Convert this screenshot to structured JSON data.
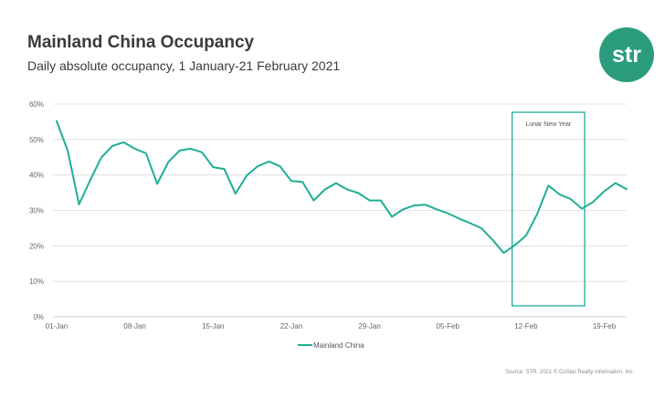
{
  "header": {
    "title": "Mainland China Occupancy",
    "subtitle": "Daily absolute occupancy, 1 January-21 February 2021"
  },
  "logo": {
    "text": "str",
    "color": "#2a9c7c"
  },
  "footer": {
    "source": "Source: STR. 2021 © CoStar Realty Information, Inc."
  },
  "colors": {
    "series": "#1fae95",
    "grid": "#dcdcdc",
    "axis": "#bfbfbf"
  },
  "chart_data": {
    "type": "line",
    "title": "",
    "xlabel": "",
    "ylabel": "",
    "ylim": [
      0,
      60
    ],
    "yticks": [
      0,
      10,
      20,
      30,
      40,
      50,
      60
    ],
    "ytick_labels": [
      "0%",
      "10%",
      "20%",
      "30%",
      "40%",
      "50%",
      "60%"
    ],
    "x": [
      "01-Jan",
      "02-Jan",
      "03-Jan",
      "04-Jan",
      "05-Jan",
      "06-Jan",
      "07-Jan",
      "08-Jan",
      "09-Jan",
      "10-Jan",
      "11-Jan",
      "12-Jan",
      "13-Jan",
      "14-Jan",
      "15-Jan",
      "16-Jan",
      "17-Jan",
      "18-Jan",
      "19-Jan",
      "20-Jan",
      "21-Jan",
      "22-Jan",
      "23-Jan",
      "24-Jan",
      "25-Jan",
      "26-Jan",
      "27-Jan",
      "28-Jan",
      "29-Jan",
      "30-Jan",
      "31-Jan",
      "01-Feb",
      "02-Feb",
      "03-Feb",
      "04-Feb",
      "05-Feb",
      "06-Feb",
      "07-Feb",
      "08-Feb",
      "09-Feb",
      "10-Feb",
      "11-Feb",
      "12-Feb",
      "13-Feb",
      "14-Feb",
      "15-Feb",
      "16-Feb",
      "17-Feb",
      "18-Feb",
      "19-Feb",
      "20-Feb",
      "21-Feb"
    ],
    "xtick_labels": [
      "01-Jan",
      "08-Jan",
      "15-Jan",
      "22-Jan",
      "29-Jan",
      "05-Feb",
      "12-Feb",
      "19-Feb"
    ],
    "series": [
      {
        "name": "Mainland China",
        "values": [
          55.2,
          46.8,
          31.7,
          38.5,
          44.9,
          48.2,
          49.2,
          47.4,
          46.1,
          37.5,
          43.7,
          46.9,
          47.4,
          46.4,
          42.2,
          41.7,
          34.7,
          39.8,
          42.5,
          43.8,
          42.4,
          38.3,
          38.0,
          32.8,
          35.9,
          37.7,
          35.9,
          34.9,
          32.8,
          32.8,
          28.2,
          30.3,
          31.4,
          31.6,
          30.3,
          29.2,
          27.7,
          26.4,
          25.0,
          21.7,
          18.0,
          20.2,
          22.9,
          29.0,
          37.0,
          34.5,
          33.2,
          30.5,
          32.4,
          35.4,
          37.7,
          36.0
        ]
      }
    ],
    "legend": "bottom-center",
    "grid": true,
    "annotations": [
      {
        "text": "Lunar New Year",
        "x_start": "11-Feb",
        "x_end": "17-Feb"
      }
    ]
  }
}
